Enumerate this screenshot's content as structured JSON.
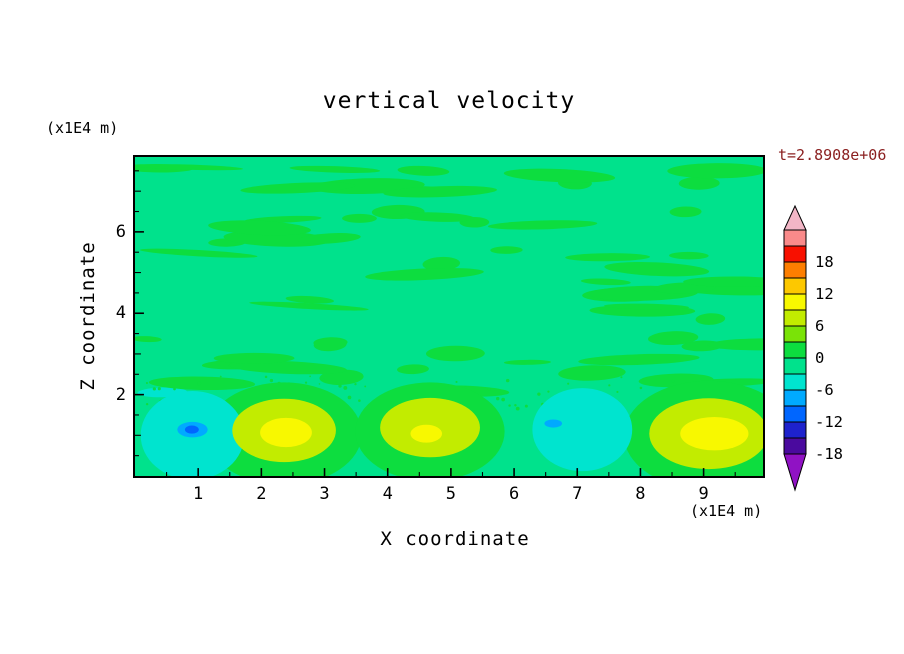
{
  "title": "vertical velocity",
  "time_label": "t=2.8908e+06",
  "accents": {
    "time_label_color": "#8b2020",
    "frame_color": "#000000"
  },
  "axes": {
    "x_label": "X coordinate",
    "x_unit": "(x1E4 m)",
    "y_label": "Z coordinate",
    "y_unit": "(x1E4 m)",
    "x_ticks": [
      1,
      2,
      3,
      4,
      5,
      6,
      7,
      8,
      9
    ],
    "y_ticks": [
      2,
      4,
      6
    ],
    "x_range": [
      0,
      9.94
    ],
    "y_range": [
      0,
      7.84
    ]
  },
  "colorbar": {
    "labels": [
      18,
      12,
      6,
      0,
      -6,
      -12,
      -18
    ],
    "segment_colors": [
      "#fa8a8a",
      "#f81000",
      "#fd7e00",
      "#fdc800",
      "#f8f800",
      "#c2ec00",
      "#7ae307",
      "#0ddd3f",
      "#00e28c",
      "#00e4cf",
      "#00aaff",
      "#0066ff",
      "#1e22cd",
      "#4a0a9e"
    ],
    "arrow_top_color": "#f2b6c6",
    "arrow_bottom_color": "#9012c4",
    "contour_interval": 3
  },
  "chart_data": {
    "type": "heatmap",
    "subtype": "filled-contour",
    "title": "vertical velocity",
    "time": "t=2.8908e+06",
    "xlabel": "X coordinate (x1E4 m)",
    "ylabel": "Z coordinate (x1E4 m)",
    "x_range": [
      0,
      9.94
    ],
    "y_range": [
      0,
      7.84
    ],
    "levels": [
      -18,
      -15,
      -12,
      -9,
      -6,
      -3,
      0,
      3,
      6,
      9,
      12,
      15,
      18
    ],
    "colors": {
      "background": "#00e28c",
      "green": "#0ddd3f",
      "yellow_green": "#c2ec00",
      "yellow": "#f8f800",
      "turquoise": "#00e4cf",
      "light_blue": "#00aaff",
      "blue": "#0066ff"
    },
    "description": "Near-zero vertical velocity (green shades) over most of the domain with wave-like horizontal streaks; near the surface (z<2): positive cells (yellow) centered near x=2.4, x=4.7, x=9.1 and negative cells (cyan/blue) centered near x=0.9 and x=7.1",
    "features": [
      {
        "shape": "ellipse",
        "x": 2.36,
        "y": 1.04,
        "rx": 1.23,
        "ry": 1.26,
        "color": "green",
        "value": "0 to 3"
      },
      {
        "shape": "ellipse",
        "x": 4.67,
        "y": 1.09,
        "rx": 1.18,
        "ry": 1.21,
        "color": "green",
        "value": "0 to 3"
      },
      {
        "shape": "ellipse",
        "x": 9.08,
        "y": 1.0,
        "rx": 1.34,
        "ry": 1.34,
        "color": "green",
        "value": "0 to 3"
      },
      {
        "shape": "ellipse",
        "x": 0.91,
        "y": 1.0,
        "rx": 0.82,
        "ry": 1.09,
        "color": "turquoise",
        "value": "-3 to -6"
      },
      {
        "shape": "ellipse",
        "x": 7.08,
        "y": 1.14,
        "rx": 0.79,
        "ry": 1.02,
        "color": "turquoise",
        "value": "-3 to -6"
      },
      {
        "shape": "ellipse",
        "x": 2.36,
        "y": 1.12,
        "rx": 0.82,
        "ry": 0.78,
        "color": "yellow_green",
        "value": "3 to 6"
      },
      {
        "shape": "ellipse",
        "x": 4.67,
        "y": 1.19,
        "rx": 0.79,
        "ry": 0.73,
        "color": "yellow_green",
        "value": "3 to 6"
      },
      {
        "shape": "ellipse",
        "x": 9.08,
        "y": 1.04,
        "rx": 0.94,
        "ry": 0.87,
        "color": "yellow_green",
        "value": "3 to 6"
      },
      {
        "shape": "ellipse",
        "x": 2.39,
        "y": 1.07,
        "rx": 0.41,
        "ry": 0.36,
        "color": "yellow",
        "value": "6 to 9"
      },
      {
        "shape": "ellipse",
        "x": 4.61,
        "y": 1.04,
        "rx": 0.25,
        "ry": 0.22,
        "color": "yellow",
        "value": "6 to 9"
      },
      {
        "shape": "ellipse",
        "x": 9.17,
        "y": 1.04,
        "rx": 0.54,
        "ry": 0.41,
        "color": "yellow",
        "value": "6 to 9"
      },
      {
        "shape": "ellipse",
        "x": 0.91,
        "y": 1.14,
        "rx": 0.24,
        "ry": 0.19,
        "color": "light_blue",
        "value": "-6 to -9"
      },
      {
        "shape": "ellipse",
        "x": 0.9,
        "y": 1.14,
        "rx": 0.11,
        "ry": 0.1,
        "color": "blue",
        "value": "-9 to -12"
      },
      {
        "shape": "ellipse",
        "x": 6.62,
        "y": 1.29,
        "rx": 0.14,
        "ry": 0.1,
        "color": "light_blue",
        "value": "-6 to -9"
      }
    ],
    "streaks": {
      "seed": 20,
      "count": 62,
      "rx_min": 14,
      "rx_max": 62,
      "ry_min": 2.5,
      "ry_max": 8,
      "turquoise_fraction": 0.13
    },
    "speckle": {
      "seed": 5,
      "count": 70,
      "y_center": 2.05,
      "y_spread": 0.4,
      "r_min": 0.8,
      "r_max": 2.0
    }
  }
}
